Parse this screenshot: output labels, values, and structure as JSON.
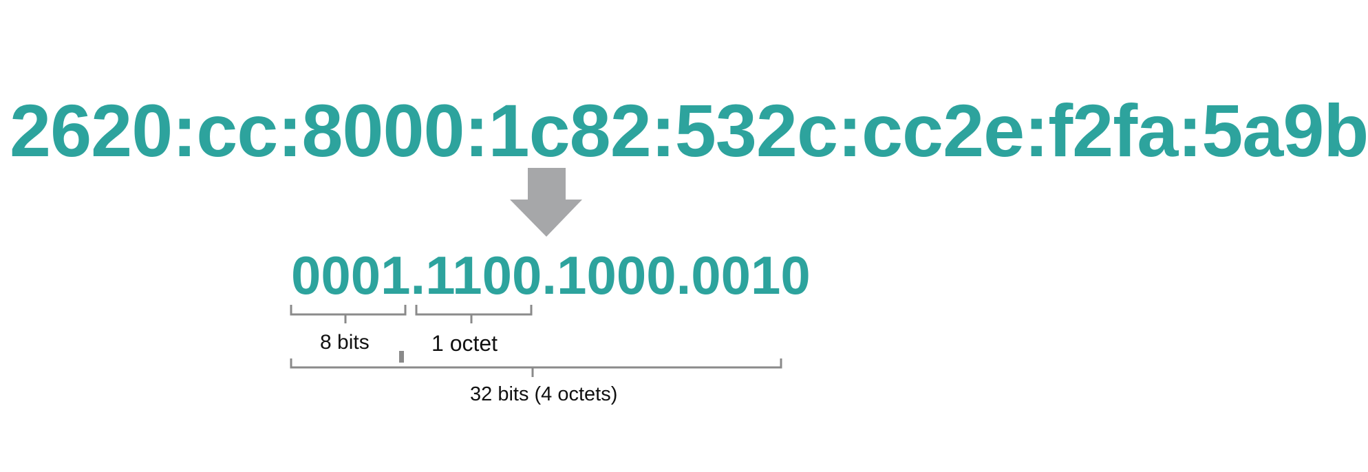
{
  "ipv6_address": "2620:cc:8000:1c82:532c:cc2e:f2fa:5a9b",
  "binary_value": "0001.1100.1000.0010",
  "labels": {
    "eight_bits": "8 bits",
    "one_octet": "1 octet",
    "thirty_two_bits": "32 bits (4 octets)"
  },
  "colors": {
    "address_text": "#2da39d",
    "arrow": "#a6a7a9",
    "bracket": "#8a8a8a",
    "label_text": "#111111"
  },
  "icons": {
    "arrow": "down-arrow-icon"
  }
}
